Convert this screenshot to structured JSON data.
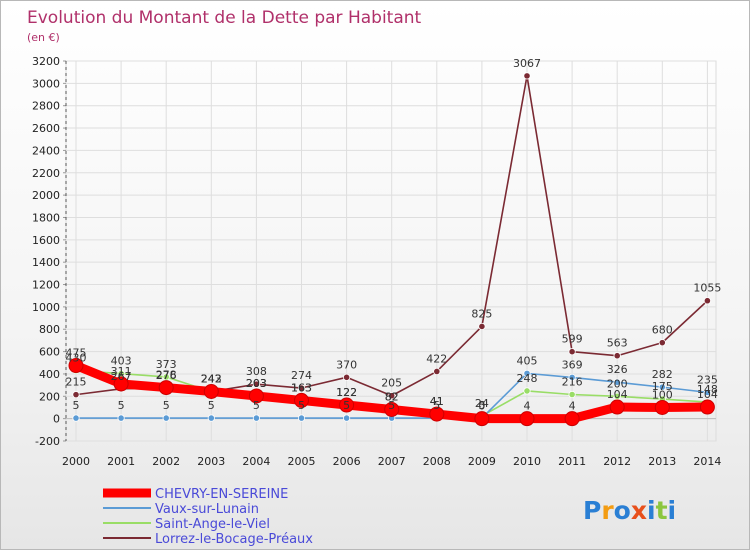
{
  "chart_data": {
    "type": "line",
    "title": "Evolution du Montant de la Dette par Habitant",
    "subtitle": "(en €)",
    "x": [
      "2000",
      "2001",
      "2002",
      "2003",
      "2004",
      "2005",
      "2006",
      "2007",
      "2008",
      "2009",
      "2010",
      "2011",
      "2012",
      "2013",
      "2014"
    ],
    "yticks": [
      -200,
      0,
      200,
      400,
      600,
      800,
      1000,
      1200,
      1400,
      1600,
      1800,
      2000,
      2200,
      2400,
      2600,
      2800,
      3000,
      3200
    ],
    "ylim": [
      -200,
      3200
    ],
    "grid": true,
    "legend_position": "bottom-left",
    "series": [
      {
        "name": "CHEVRY-EN-SEREINE",
        "color": "#ff0000",
        "values": [
          475,
          311,
          278,
          243,
          203,
          163,
          122,
          82,
          41,
          0,
          0,
          0,
          104,
          100,
          104
        ],
        "labels": [
          "475",
          "311",
          "278",
          "243",
          "203",
          "163",
          "122",
          "82",
          "41",
          "0",
          "",
          "",
          "104",
          "100",
          "104"
        ]
      },
      {
        "name": "Vaux-sur-Lunain",
        "color": "#5b9bd5",
        "values": [
          5,
          5,
          5,
          5,
          5,
          5,
          5,
          5,
          5,
          5,
          405,
          369,
          326,
          282,
          235
        ],
        "labels": [
          "5",
          "5",
          "5",
          "5",
          "5",
          "5",
          "5",
          "5",
          "5",
          "5",
          "405",
          "369",
          "326",
          "282",
          "235"
        ]
      },
      {
        "name": "Saint-Ange-le-Viel",
        "color": "#99dd66",
        "values": [
          430,
          403,
          373,
          242,
          203,
          163,
          122,
          82,
          41,
          24,
          248,
          216,
          200,
          175,
          148
        ],
        "labels": [
          "430",
          "403",
          "373",
          "242",
          "203",
          "163",
          "122",
          "82",
          "41",
          "24",
          "248",
          "216",
          "200",
          "175",
          "148"
        ]
      },
      {
        "name": "Lorrez-le-Bocage-Préaux",
        "color": "#7b2a33",
        "values": [
          215,
          267,
          276,
          242,
          308,
          274,
          370,
          205,
          422,
          825,
          3067,
          599,
          563,
          680,
          1055
        ],
        "labels": [
          "215",
          "267",
          "276",
          "242",
          "308",
          "274",
          "370",
          "205",
          "422",
          "825",
          "3067",
          "599",
          "563",
          "680",
          "1055"
        ]
      }
    ],
    "annotations": [
      "4",
      "4"
    ]
  },
  "logo": {
    "text": "Proxiti",
    "letters": [
      "P",
      "r",
      "o",
      "x",
      "i",
      "t",
      "i"
    ],
    "colors": [
      "#2a7fd4",
      "#f39c12",
      "#2a7fd4",
      "#e8501b",
      "#2a7fd4",
      "#8cc63f",
      "#2a7fd4"
    ]
  }
}
